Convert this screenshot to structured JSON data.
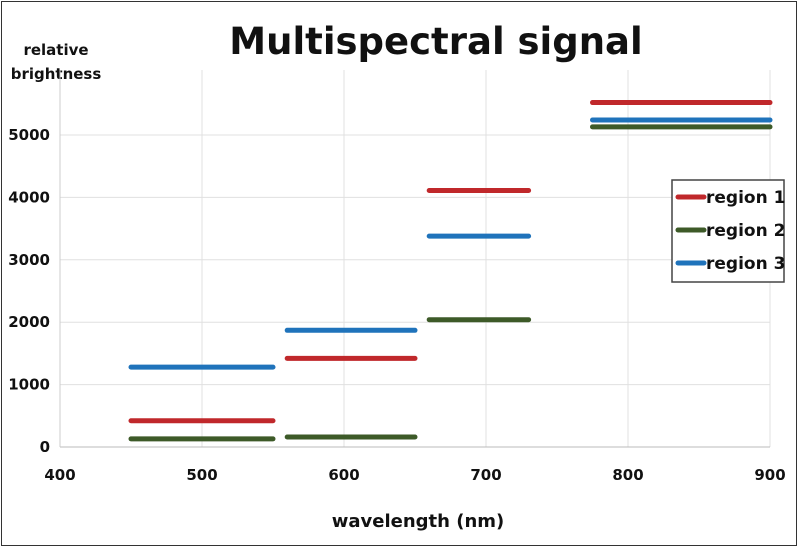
{
  "chart_data": {
    "type": "line",
    "title": "Multispectral signal",
    "xlabel": "wavelength (nm)",
    "ylabel": [
      "relative",
      "brightness"
    ],
    "xlim": [
      400,
      900
    ],
    "ylim": [
      0,
      5000
    ],
    "xticks": [
      400,
      500,
      600,
      700,
      800,
      900
    ],
    "yticks": [
      0,
      1000,
      2000,
      3000,
      4000,
      5000
    ],
    "grid": true,
    "legend_position": "right",
    "bands": [
      [
        450,
        550
      ],
      [
        560,
        650
      ],
      [
        660,
        730
      ],
      [
        775,
        900
      ]
    ],
    "series": [
      {
        "name": "region 1",
        "color": "#c0282b",
        "values": [
          420,
          1420,
          4110,
          5520
        ]
      },
      {
        "name": "region 2",
        "color": "#3d5a28",
        "values": [
          130,
          160,
          2040,
          5130
        ]
      },
      {
        "name": "region 3",
        "color": "#1f73bb",
        "values": [
          1280,
          1870,
          3380,
          5240
        ]
      }
    ]
  }
}
